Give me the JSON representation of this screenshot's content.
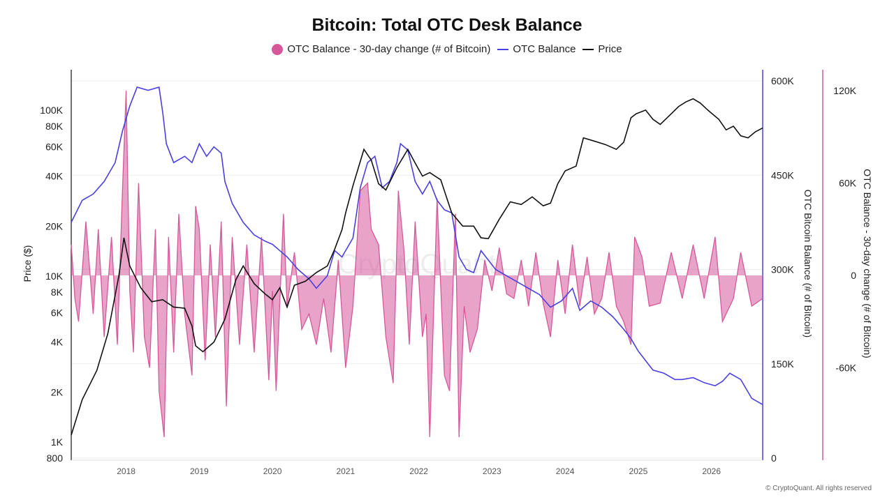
{
  "chart_data": {
    "type": "line",
    "title": "Bitcoin: Total OTC Desk Balance",
    "legend": [
      {
        "label": "OTC Balance - 30-day change (# of Bitcoin)",
        "color": "#d6589a",
        "marker": "dot"
      },
      {
        "label": "OTC Balance",
        "color": "#4a3fe0",
        "marker": "line"
      },
      {
        "label": "Price",
        "color": "#111111",
        "marker": "line"
      }
    ],
    "legend_position": "top-center",
    "grid": true,
    "watermark": "CryptoQuant",
    "x_ticks": [
      "2018",
      "2019",
      "2020",
      "2021",
      "2022",
      "2023",
      "2024",
      "2025",
      "2026"
    ],
    "x_range": [
      2017.25,
      2026.7
    ],
    "axes": {
      "price": {
        "label": "Price ($)",
        "scale": "log",
        "range": [
          800,
          150000
        ],
        "ticks": [
          {
            "v": 1000,
            "label": "1K"
          },
          {
            "v": 2000,
            "label": "2K"
          },
          {
            "v": 4000,
            "label": "4K"
          },
          {
            "v": 6000,
            "label": "6K"
          },
          {
            "v": 8000,
            "label": "8K"
          },
          {
            "v": 10000,
            "label": "10K"
          },
          {
            "v": 20000,
            "label": "20K"
          },
          {
            "v": 40000,
            "label": "40K"
          },
          {
            "v": 60000,
            "label": "60K"
          },
          {
            "v": 80000,
            "label": "80K"
          },
          {
            "v": 100000,
            "label": "100K"
          },
          {
            "v": 800,
            "label": "800"
          }
        ]
      },
      "balance": {
        "label": "OTC Bitcoin Balance (# of Bitcoin)",
        "scale": "linear",
        "range": [
          0,
          600000
        ],
        "ticks": [
          {
            "v": 0,
            "label": "0"
          },
          {
            "v": 150000,
            "label": "150K"
          },
          {
            "v": 300000,
            "label": "300K"
          },
          {
            "v": 450000,
            "label": "450K"
          },
          {
            "v": 600000,
            "label": "600K"
          }
        ]
      },
      "change": {
        "label": "OTC Balance - 30-day change (# of Bitcoin)",
        "scale": "linear",
        "range": [
          -120000,
          120000
        ],
        "ticks": [
          {
            "v": 120000,
            "label": "120K"
          },
          {
            "v": 60000,
            "label": "60K"
          },
          {
            "v": 0,
            "label": "0"
          },
          {
            "v": -60000,
            "label": "-60K"
          }
        ]
      }
    },
    "series": [
      {
        "name": "Price",
        "axis": "price",
        "color": "#111111",
        "x": [
          2017.25,
          2017.4,
          2017.6,
          2017.75,
          2017.9,
          2017.97,
          2018.05,
          2018.2,
          2018.35,
          2018.5,
          2018.65,
          2018.8,
          2018.9,
          2018.95,
          2019.05,
          2019.2,
          2019.35,
          2019.5,
          2019.6,
          2019.75,
          2019.9,
          2020.0,
          2020.1,
          2020.2,
          2020.3,
          2020.45,
          2020.6,
          2020.75,
          2020.85,
          2020.95,
          2021.0,
          2021.1,
          2021.25,
          2021.35,
          2021.45,
          2021.55,
          2021.7,
          2021.85,
          2021.95,
          2022.05,
          2022.15,
          2022.3,
          2022.45,
          2022.6,
          2022.75,
          2022.85,
          2022.95,
          2023.1,
          2023.25,
          2023.4,
          2023.55,
          2023.7,
          2023.8,
          2023.9,
          2024.0,
          2024.15,
          2024.25,
          2024.4,
          2024.55,
          2024.7,
          2024.8,
          2024.9,
          2024.97,
          2025.1,
          2025.2,
          2025.3,
          2025.45,
          2025.55,
          2025.65,
          2025.75,
          2025.85,
          2025.95,
          2026.1,
          2026.2,
          2026.3,
          2026.4,
          2026.5,
          2026.6,
          2026.7
        ],
        "y": [
          1100,
          1800,
          2700,
          4500,
          10000,
          17000,
          11500,
          8500,
          7000,
          7200,
          6500,
          6400,
          5000,
          3800,
          3500,
          4000,
          5500,
          9500,
          11500,
          9000,
          7800,
          7200,
          8500,
          6500,
          8800,
          9300,
          10500,
          11500,
          14500,
          19000,
          24000,
          35000,
          58000,
          50000,
          36000,
          33000,
          45000,
          58000,
          48000,
          40000,
          42000,
          38000,
          24000,
          20000,
          20000,
          17000,
          16800,
          22000,
          28000,
          27000,
          30000,
          26500,
          27500,
          36000,
          43000,
          46000,
          68000,
          65000,
          62000,
          58000,
          64000,
          90000,
          95000,
          100000,
          88000,
          82000,
          95000,
          105000,
          112000,
          117000,
          110000,
          100000,
          88000,
          76000,
          80000,
          70000,
          68000,
          74000,
          78000
        ]
      },
      {
        "name": "OTC Balance",
        "axis": "balance",
        "color": "#4a3fe0",
        "x": [
          2017.25,
          2017.4,
          2017.55,
          2017.7,
          2017.85,
          2017.95,
          2018.05,
          2018.15,
          2018.3,
          2018.45,
          2018.5,
          2018.55,
          2018.65,
          2018.8,
          2018.9,
          2019.0,
          2019.1,
          2019.2,
          2019.3,
          2019.35,
          2019.45,
          2019.6,
          2019.75,
          2019.9,
          2020.0,
          2020.1,
          2020.2,
          2020.35,
          2020.5,
          2020.6,
          2020.75,
          2020.85,
          2020.95,
          2021.1,
          2021.2,
          2021.3,
          2021.4,
          2021.5,
          2021.6,
          2021.7,
          2021.75,
          2021.85,
          2021.95,
          2022.05,
          2022.15,
          2022.25,
          2022.35,
          2022.45,
          2022.55,
          2022.65,
          2022.75,
          2022.85,
          2022.95,
          2023.05,
          2023.2,
          2023.35,
          2023.5,
          2023.65,
          2023.8,
          2023.95,
          2024.1,
          2024.2,
          2024.35,
          2024.5,
          2024.65,
          2024.8,
          2024.9,
          2025.0,
          2025.1,
          2025.2,
          2025.35,
          2025.5,
          2025.6,
          2025.75,
          2025.9,
          2026.05,
          2026.15,
          2026.25,
          2026.4,
          2026.55,
          2026.7
        ],
        "y": [
          375000,
          410000,
          420000,
          440000,
          470000,
          520000,
          560000,
          590000,
          585000,
          590000,
          550000,
          500000,
          470000,
          480000,
          470000,
          500000,
          480000,
          495000,
          485000,
          440000,
          405000,
          375000,
          355000,
          345000,
          340000,
          330000,
          320000,
          300000,
          285000,
          270000,
          290000,
          330000,
          320000,
          350000,
          430000,
          470000,
          480000,
          430000,
          440000,
          470000,
          500000,
          490000,
          440000,
          420000,
          440000,
          410000,
          395000,
          390000,
          320000,
          300000,
          295000,
          330000,
          315000,
          300000,
          290000,
          280000,
          270000,
          260000,
          240000,
          250000,
          270000,
          235000,
          250000,
          240000,
          225000,
          205000,
          190000,
          170000,
          155000,
          140000,
          135000,
          125000,
          125000,
          128000,
          120000,
          115000,
          122000,
          135000,
          125000,
          95000,
          85000
        ]
      },
      {
        "name": "OTC Balance - 30-day change (# of Bitcoin)",
        "axis": "change",
        "color": "#d6589a",
        "x": [
          2017.25,
          2017.3,
          2017.35,
          2017.45,
          2017.55,
          2017.62,
          2017.7,
          2017.8,
          2017.88,
          2017.95,
          2018.0,
          2018.05,
          2018.1,
          2018.17,
          2018.25,
          2018.32,
          2018.4,
          2018.45,
          2018.52,
          2018.58,
          2018.65,
          2018.72,
          2018.8,
          2018.9,
          2018.95,
          2019.0,
          2019.08,
          2019.15,
          2019.22,
          2019.3,
          2019.37,
          2019.45,
          2019.55,
          2019.65,
          2019.75,
          2019.85,
          2019.95,
          2020.0,
          2020.05,
          2020.15,
          2020.2,
          2020.3,
          2020.4,
          2020.5,
          2020.6,
          2020.7,
          2020.8,
          2020.9,
          2021.0,
          2021.1,
          2021.2,
          2021.3,
          2021.35,
          2021.45,
          2021.55,
          2021.65,
          2021.72,
          2021.8,
          2021.87,
          2021.95,
          2022.05,
          2022.1,
          2022.15,
          2022.25,
          2022.35,
          2022.42,
          2022.5,
          2022.55,
          2022.62,
          2022.7,
          2022.8,
          2022.9,
          2023.0,
          2023.1,
          2023.2,
          2023.3,
          2023.4,
          2023.5,
          2023.6,
          2023.7,
          2023.8,
          2023.9,
          2024.0,
          2024.1,
          2024.2,
          2024.3,
          2024.4,
          2024.5,
          2024.6,
          2024.7,
          2024.8,
          2024.9,
          2024.95,
          2025.05,
          2025.15,
          2025.3,
          2025.45,
          2025.6,
          2025.75,
          2025.9,
          2026.05,
          2026.15,
          2026.3,
          2026.4,
          2026.55,
          2026.7
        ],
        "y": [
          20000,
          -15000,
          -30000,
          35000,
          -25000,
          30000,
          -40000,
          25000,
          -45000,
          55000,
          120000,
          -10000,
          -50000,
          60000,
          -40000,
          -60000,
          30000,
          -75000,
          -105000,
          25000,
          -50000,
          40000,
          -25000,
          -65000,
          45000,
          30000,
          -55000,
          20000,
          -40000,
          35000,
          -85000,
          25000,
          -45000,
          20000,
          -50000,
          25000,
          -68000,
          -10000,
          -75000,
          40000,
          -20000,
          15000,
          -35000,
          -25000,
          -45000,
          -15000,
          -50000,
          10000,
          -60000,
          -20000,
          55000,
          60000,
          30000,
          20000,
          -40000,
          -70000,
          55000,
          15000,
          -45000,
          35000,
          -40000,
          -25000,
          -105000,
          50000,
          -65000,
          -75000,
          40000,
          -105000,
          -20000,
          -50000,
          -35000,
          10000,
          -10000,
          18000,
          -12000,
          -15000,
          10000,
          -20000,
          15000,
          -18000,
          -40000,
          10000,
          -25000,
          20000,
          -20000,
          12000,
          -25000,
          -15000,
          15000,
          -20000,
          -30000,
          -45000,
          25000,
          12000,
          -20000,
          -18000,
          15000,
          -15000,
          20000,
          -15000,
          25000,
          -30000,
          -15000,
          15000,
          -20000,
          -15000
        ]
      }
    ]
  },
  "footer": "© CryptoQuant. All rights reserved"
}
